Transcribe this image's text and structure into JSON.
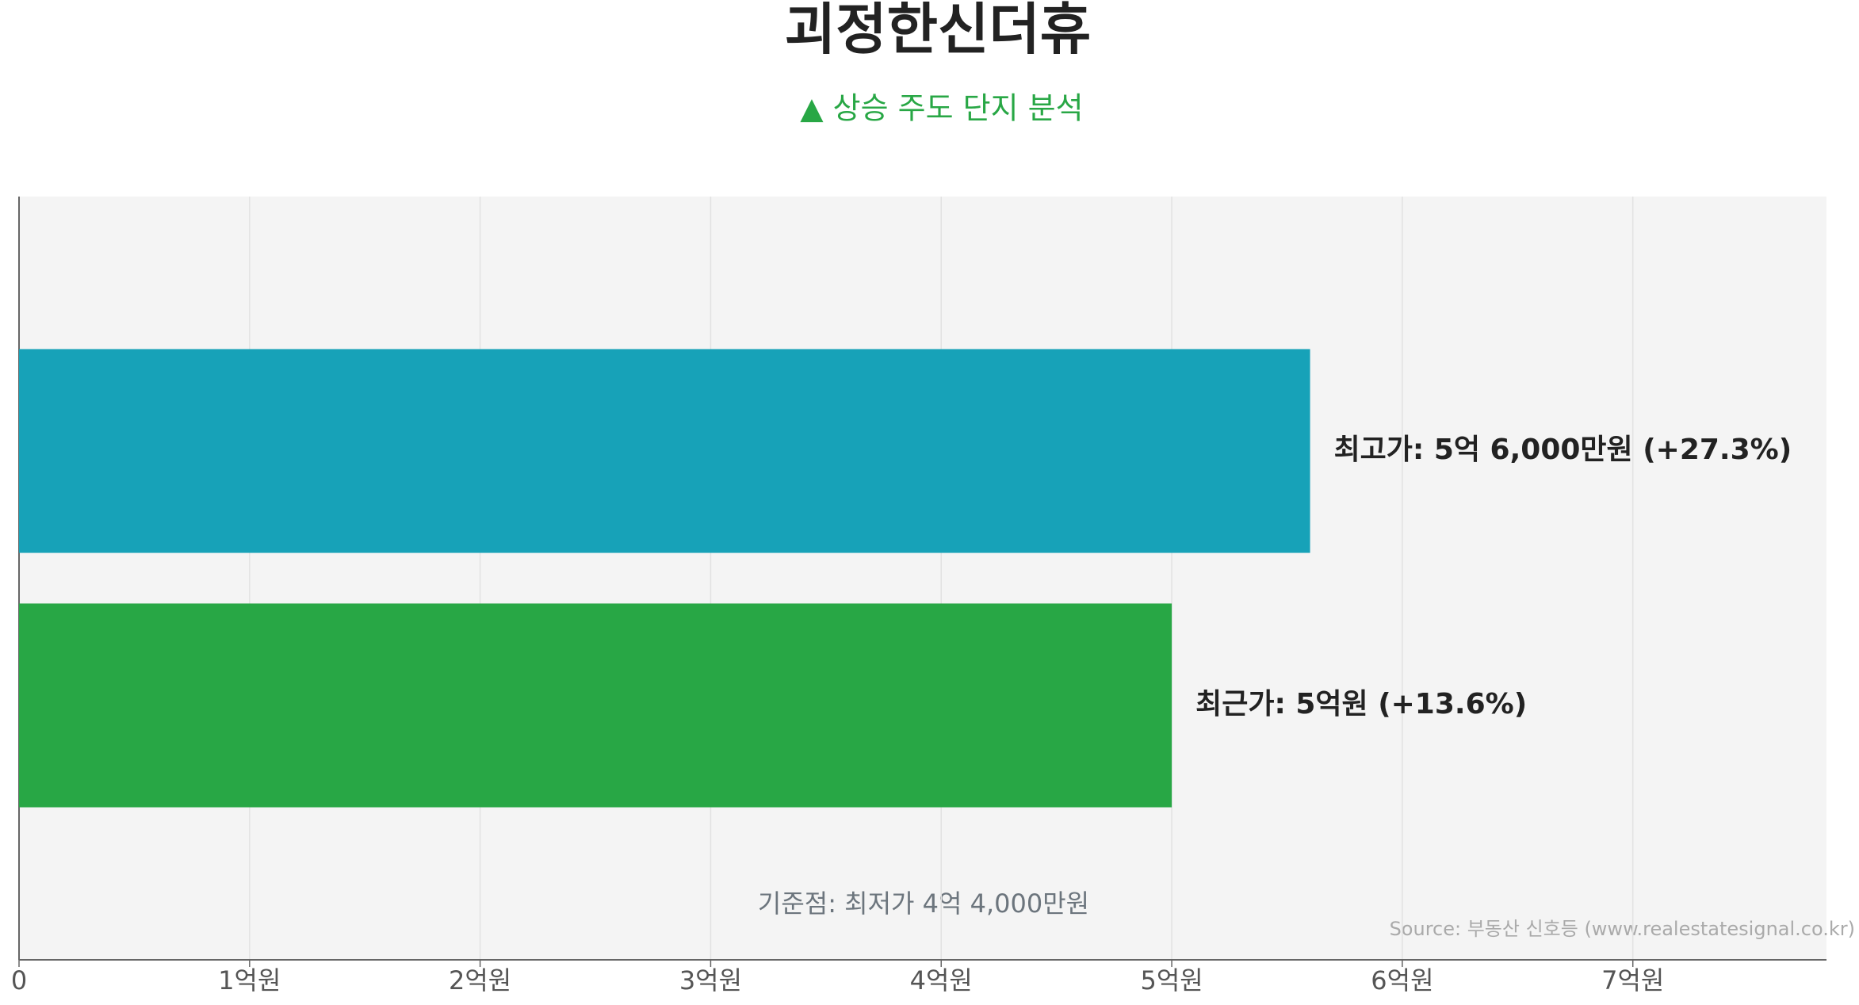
{
  "chart_data": {
    "type": "bar",
    "orientation": "horizontal",
    "title": "괴정한신더휴",
    "subtitle": "▲ 상승 주도 단지 분석",
    "values": [
      5.6,
      5
    ],
    "value_labels": [
      "최고가: 5억 6,000만원 (+27.3%)",
      "최근가: 5억원 (+13.6%)"
    ],
    "colors": [
      "#17a2b8",
      "#28a745"
    ],
    "xlim": [
      0,
      7.84
    ],
    "xticks": [
      0,
      {
        "value": 1,
        "label": "1억원"
      },
      {
        "value": 2,
        "label": "2억원"
      },
      {
        "value": 3,
        "label": "3억원"
      },
      {
        "value": 4,
        "label": "4억원"
      },
      {
        "value": 5,
        "label": "5억원"
      },
      {
        "value": 6,
        "label": "6억원"
      },
      {
        "value": 7,
        "label": "7억원"
      }
    ],
    "grid": true,
    "annotation": "기준점: 최저가 4억 4,000만원",
    "source": "Source: 부동산 신호등 (www.realestatesignal.co.kr)"
  }
}
